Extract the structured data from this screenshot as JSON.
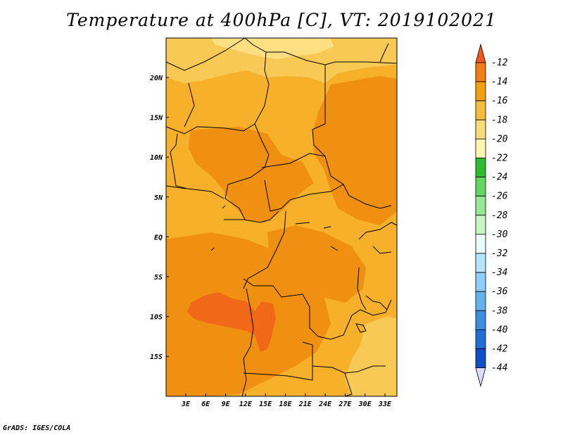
{
  "title": "Temperature at 400hPa [C], VT: 2019102021",
  "credit": "GrADS: IGES/COLA",
  "lat_ticks": [
    "20N",
    "15N",
    "10N",
    "5N",
    "EQ",
    "5S",
    "10S",
    "15S"
  ],
  "lon_ticks": [
    "3E",
    "6E",
    "9E",
    "12E",
    "15E",
    "18E",
    "21E",
    "24E",
    "27E",
    "30E",
    "33E"
  ],
  "colorbar": {
    "labels": [
      "-12",
      "-14",
      "-16",
      "-18",
      "-20",
      "-22",
      "-24",
      "-26",
      "-28",
      "-30",
      "-32",
      "-34",
      "-36",
      "-38",
      "-40",
      "-42",
      "-44"
    ],
    "colors": [
      "#f05a1e",
      "#f27d14",
      "#f4a00e",
      "#f6bd3c",
      "#f9dc78",
      "#fff5b0",
      "#2fbd2f",
      "#60d760",
      "#97e896",
      "#c8f6c4",
      "#e8fcfc",
      "#b6e6fb",
      "#8ecdf7",
      "#62b2ef",
      "#3d8ee3",
      "#1f6fd6",
      "#0f4fc8",
      "#0d2a9c",
      "#0a1468",
      "#dcdcff"
    ]
  },
  "map_colors": {
    "base": "#f6b02a",
    "north": "#f8c955",
    "far_north": "#fcdf80",
    "warm": "#f09010",
    "hot": "#f06818",
    "border": "#000000"
  }
}
